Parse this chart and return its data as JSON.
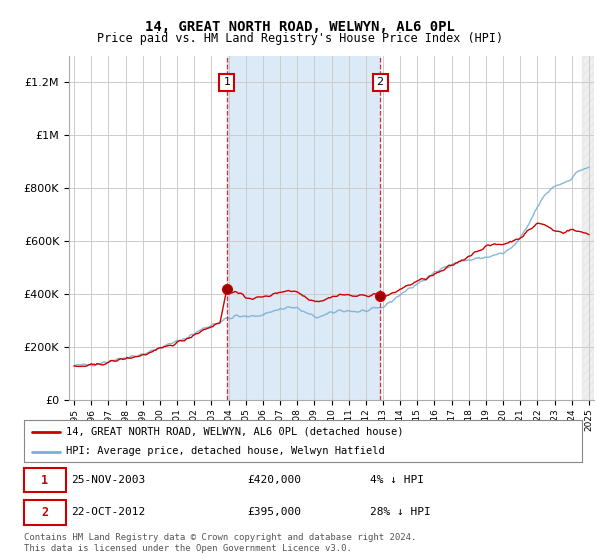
{
  "title": "14, GREAT NORTH ROAD, WELWYN, AL6 0PL",
  "subtitle": "Price paid vs. HM Land Registry's House Price Index (HPI)",
  "background_color": "#ffffff",
  "plot_bg_color": "#ffffff",
  "grid_color": "#cccccc",
  "shade_color": "#dce9f7",
  "red_color": "#cc0000",
  "blue_color": "#7ab0d4",
  "transaction1_x": 2003.9,
  "transaction2_x": 2012.83,
  "transaction1_price": 420000,
  "transaction2_price": 395000,
  "legend_line1": "14, GREAT NORTH ROAD, WELWYN, AL6 0PL (detached house)",
  "legend_line2": "HPI: Average price, detached house, Welwyn Hatfield",
  "footer": "Contains HM Land Registry data © Crown copyright and database right 2024.\nThis data is licensed under the Open Government Licence v3.0.",
  "ylim": [
    0,
    1300000
  ],
  "xlim_start": 1994.7,
  "xlim_end": 2025.3,
  "hatch_start": 2024.6
}
